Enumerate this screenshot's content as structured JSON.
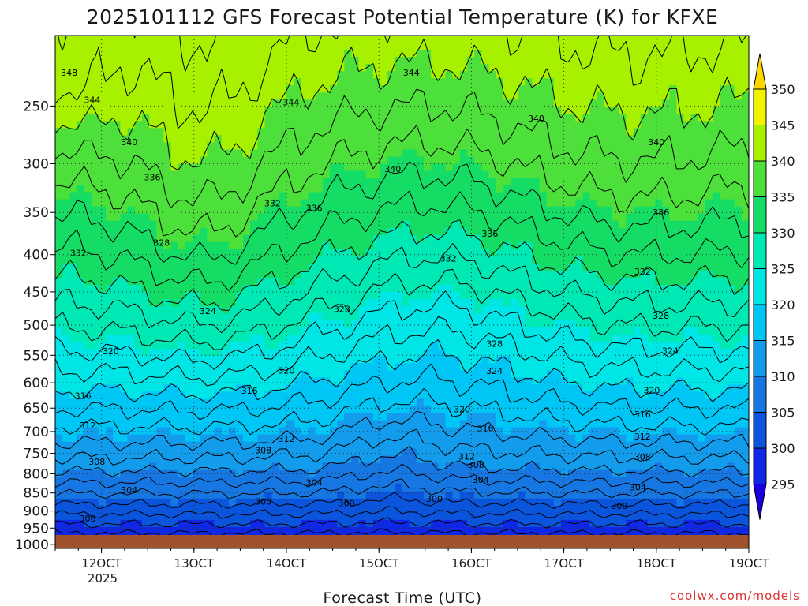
{
  "chart_data": {
    "type": "heatmap",
    "title": "2025101112 GFS Forecast Potential Temperature (K) for KFXE",
    "xlabel": "Forecast Time (UTC)",
    "ylabel": "",
    "x_ticks": [
      "12OCT",
      "13OCT",
      "14OCT",
      "15OCT",
      "16OCT",
      "17OCT",
      "18OCT",
      "19OCT"
    ],
    "x_sub_label": "2025",
    "x_range_days": [
      11.5,
      19.0
    ],
    "y_ticks": [
      250,
      300,
      350,
      400,
      450,
      500,
      550,
      600,
      650,
      700,
      750,
      800,
      850,
      900,
      950,
      1000
    ],
    "y_range_hpa": [
      200,
      1013
    ],
    "colorbar": {
      "levels": [
        295,
        300,
        305,
        310,
        315,
        320,
        325,
        330,
        335,
        340,
        345,
        350
      ],
      "labels": [
        "295",
        "300",
        "305",
        "310",
        "315",
        "320",
        "325",
        "330",
        "335",
        "340",
        "345",
        "350"
      ],
      "colors": [
        "#1a00e0",
        "#0f28e6",
        "#0b55dc",
        "#1777e2",
        "#149cec",
        "#00c6f5",
        "#00e6e6",
        "#00e8b4",
        "#14dc64",
        "#4ee03a",
        "#a6f000",
        "#f2f200",
        "#ffd800"
      ]
    },
    "contour_interval": 2,
    "contour_labels": [
      {
        "v": "348",
        "d": 11.65,
        "p": 225
      },
      {
        "v": "344",
        "d": 15.35,
        "p": 225
      },
      {
        "v": "344",
        "d": 11.9,
        "p": 245
      },
      {
        "v": "344",
        "d": 14.05,
        "p": 247
      },
      {
        "v": "340",
        "d": 15.15,
        "p": 305
      },
      {
        "v": "340",
        "d": 12.3,
        "p": 280
      },
      {
        "v": "340",
        "d": 16.7,
        "p": 260
      },
      {
        "v": "340",
        "d": 18.0,
        "p": 280
      },
      {
        "v": "336",
        "d": 12.55,
        "p": 313
      },
      {
        "v": "336",
        "d": 14.3,
        "p": 345
      },
      {
        "v": "336",
        "d": 16.2,
        "p": 374
      },
      {
        "v": "336",
        "d": 18.05,
        "p": 350
      },
      {
        "v": "332",
        "d": 11.75,
        "p": 398
      },
      {
        "v": "332",
        "d": 13.85,
        "p": 340
      },
      {
        "v": "332",
        "d": 15.75,
        "p": 405
      },
      {
        "v": "332",
        "d": 17.85,
        "p": 422
      },
      {
        "v": "328",
        "d": 12.65,
        "p": 385
      },
      {
        "v": "328",
        "d": 14.6,
        "p": 475
      },
      {
        "v": "328",
        "d": 16.25,
        "p": 530
      },
      {
        "v": "328",
        "d": 18.05,
        "p": 485
      },
      {
        "v": "324",
        "d": 13.15,
        "p": 478
      },
      {
        "v": "324",
        "d": 16.25,
        "p": 578
      },
      {
        "v": "324",
        "d": 18.15,
        "p": 542
      },
      {
        "v": "320",
        "d": 12.1,
        "p": 543
      },
      {
        "v": "320",
        "d": 14.0,
        "p": 577
      },
      {
        "v": "320",
        "d": 15.9,
        "p": 652
      },
      {
        "v": "320",
        "d": 17.95,
        "p": 614
      },
      {
        "v": "316",
        "d": 11.8,
        "p": 625
      },
      {
        "v": "316",
        "d": 13.6,
        "p": 615
      },
      {
        "v": "316",
        "d": 16.15,
        "p": 692
      },
      {
        "v": "316",
        "d": 17.85,
        "p": 663
      },
      {
        "v": "312",
        "d": 11.85,
        "p": 686
      },
      {
        "v": "312",
        "d": 14.0,
        "p": 716
      },
      {
        "v": "312",
        "d": 15.95,
        "p": 757
      },
      {
        "v": "312",
        "d": 17.85,
        "p": 711
      },
      {
        "v": "308",
        "d": 11.95,
        "p": 770
      },
      {
        "v": "308",
        "d": 13.75,
        "p": 742
      },
      {
        "v": "308",
        "d": 16.05,
        "p": 778
      },
      {
        "v": "308",
        "d": 17.85,
        "p": 758
      },
      {
        "v": "304",
        "d": 12.3,
        "p": 842
      },
      {
        "v": "304",
        "d": 14.3,
        "p": 822
      },
      {
        "v": "304",
        "d": 16.1,
        "p": 815
      },
      {
        "v": "304",
        "d": 17.8,
        "p": 835
      },
      {
        "v": "300",
        "d": 11.85,
        "p": 921
      },
      {
        "v": "300",
        "d": 13.75,
        "p": 873
      },
      {
        "v": "300",
        "d": 14.65,
        "p": 878
      },
      {
        "v": "300",
        "d": 15.6,
        "p": 866
      },
      {
        "v": "300",
        "d": 17.6,
        "p": 885
      }
    ],
    "credit": "coolwx.com/models"
  }
}
